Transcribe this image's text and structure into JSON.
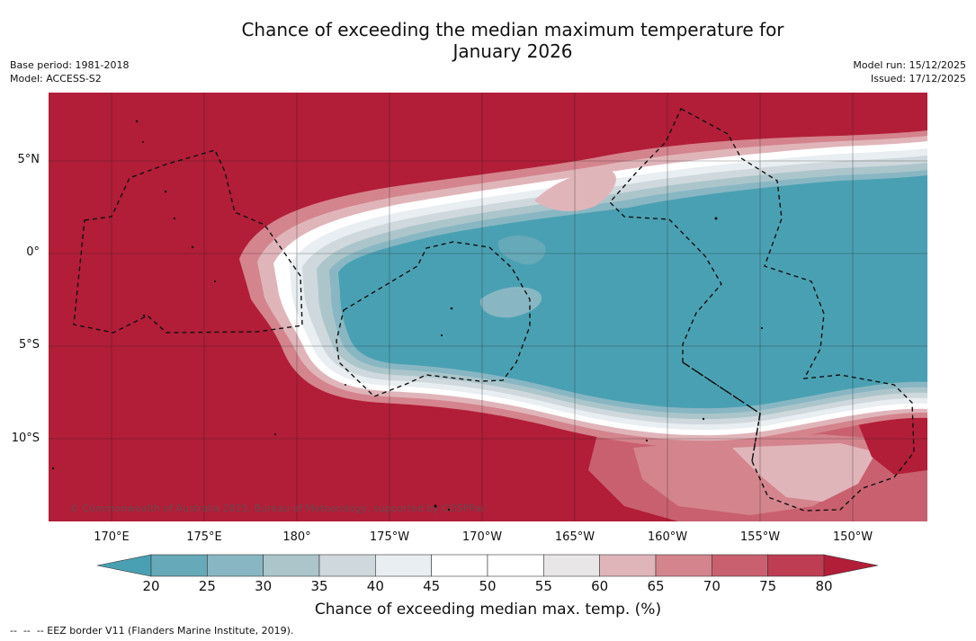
{
  "header": {
    "title_line1": "Chance of exceeding the median maximum temperature for",
    "title_line2": "January 2026",
    "base_period": "Base period: 1981-2018",
    "model": "Model: ACCESS-S2",
    "model_run": "Model run: 15/12/2025",
    "issued": "Issued: 17/12/2025"
  },
  "map": {
    "copyright": "© Commonwealth of Australia 2025, Bureau of Meteorology, supported by COSPPac",
    "lat_labels": [
      "5°N",
      "0°",
      "5°S",
      "10°S"
    ],
    "lon_labels": [
      "170°E",
      "175°E",
      "180°",
      "175°W",
      "170°W",
      "165°W",
      "160°W",
      "155°W",
      "150°W"
    ],
    "colors": {
      "above_80": "#b21d38",
      "p75_80": "#bf3d53",
      "p70_75": "#c9606f",
      "p65_70": "#d4848d",
      "p60_65": "#e0b5ba",
      "p55_60": "#e9e6e8",
      "p45_55": "#ffffff",
      "p40_45": "#e8eef1",
      "p35_40": "#cfd8dc",
      "p30_35": "#abc5cb",
      "p25_30": "#88b7c3",
      "below_25": "#4aa0b3",
      "below_20": "#4aa0b3"
    }
  },
  "colorbar": {
    "ticks": [
      "20",
      "25",
      "30",
      "35",
      "40",
      "45",
      "50",
      "55",
      "60",
      "65",
      "70",
      "75",
      "80"
    ],
    "label": "Chance of exceeding median max. temp. (%)",
    "segment_colors": [
      "#66a9b8",
      "#88b7c3",
      "#abc5cb",
      "#cfd8dc",
      "#e8eef1",
      "#ffffff",
      "#ffffff",
      "#e9e6e8",
      "#e0b5ba",
      "#d4848d",
      "#c9606f",
      "#bf3d53"
    ],
    "low_extend_color": "#4aa0b3",
    "high_extend_color": "#b21d38"
  },
  "footer": {
    "eez_note": "--  --  -- EEZ border V11 (Flanders Marine Institute, 2019)."
  }
}
